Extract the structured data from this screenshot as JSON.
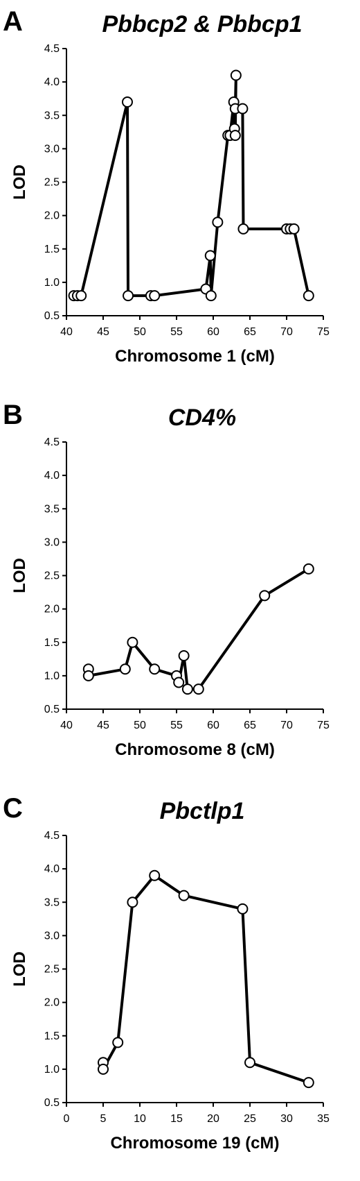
{
  "chart_data": [
    {
      "type": "line",
      "panel_label": "A",
      "title": "Pbbcp2 & Pbbcp1",
      "xlabel": "Chromosome 1 (cM)",
      "ylabel": "LOD",
      "xlim": [
        40,
        75
      ],
      "ylim": [
        0.5,
        4.5
      ],
      "xticks": [
        40,
        45,
        50,
        55,
        60,
        65,
        70,
        75
      ],
      "yticks": [
        0.5,
        1.0,
        1.5,
        2.0,
        2.5,
        3.0,
        3.5,
        4.0,
        4.5
      ],
      "ytick_labels": [
        "0.5",
        "1.0",
        "1.5",
        "2.0",
        "2.5",
        "3.0",
        "3.5",
        "4.0",
        "4.5"
      ],
      "series": [
        {
          "x": [
            41,
            41.5,
            42,
            48.3,
            48.4,
            51.5,
            52,
            59,
            59.6,
            59.7,
            60.6,
            62,
            62.3,
            62.8,
            62.9,
            63,
            63.1,
            63,
            64,
            64.1,
            70,
            70.5,
            71,
            73
          ],
          "y": [
            0.8,
            0.8,
            0.8,
            3.7,
            0.8,
            0.8,
            0.8,
            0.9,
            1.4,
            0.8,
            1.9,
            3.2,
            3.2,
            3.7,
            3.3,
            3.2,
            4.1,
            3.6,
            3.6,
            1.8,
            1.8,
            1.8,
            1.8,
            0.8
          ]
        }
      ]
    },
    {
      "type": "line",
      "panel_label": "B",
      "title": "CD4%",
      "xlabel": "Chromosome 8 (cM)",
      "ylabel": "LOD",
      "xlim": [
        40,
        75
      ],
      "ylim": [
        0.5,
        4.5
      ],
      "xticks": [
        40,
        45,
        50,
        55,
        60,
        65,
        70,
        75
      ],
      "yticks": [
        0.5,
        1.0,
        1.5,
        2.0,
        2.5,
        3.0,
        3.5,
        4.0,
        4.5
      ],
      "ytick_labels": [
        "0.5",
        "1.0",
        "1.5",
        "2.0",
        "2.5",
        "3.0",
        "3.5",
        "4.0",
        "4.5"
      ],
      "series": [
        {
          "x": [
            43,
            43,
            48,
            49,
            52,
            55,
            55.3,
            56,
            56.5,
            58,
            67,
            73
          ],
          "y": [
            1.1,
            1.0,
            1.1,
            1.5,
            1.1,
            1.0,
            0.9,
            1.3,
            0.8,
            0.8,
            2.2,
            2.6
          ]
        }
      ]
    },
    {
      "type": "line",
      "panel_label": "C",
      "title": "Pbctlp1",
      "xlabel": "Chromosome 19 (cM)",
      "ylabel": "LOD",
      "xlim": [
        0,
        35
      ],
      "ylim": [
        0.5,
        4.5
      ],
      "xticks": [
        0,
        5,
        10,
        15,
        20,
        25,
        30,
        35
      ],
      "yticks": [
        0.5,
        1.0,
        1.5,
        2.0,
        2.5,
        3.0,
        3.5,
        4.0,
        4.5
      ],
      "ytick_labels": [
        "0.5",
        "1.0",
        "1.5",
        "2.0",
        "2.5",
        "3.0",
        "3.5",
        "4.0",
        "4.5"
      ],
      "series": [
        {
          "x": [
            5,
            5,
            7,
            9,
            12,
            16,
            24,
            25,
            33
          ],
          "y": [
            1.1,
            1.0,
            1.4,
            3.5,
            3.9,
            3.6,
            3.4,
            1.1,
            0.8
          ]
        }
      ]
    }
  ]
}
